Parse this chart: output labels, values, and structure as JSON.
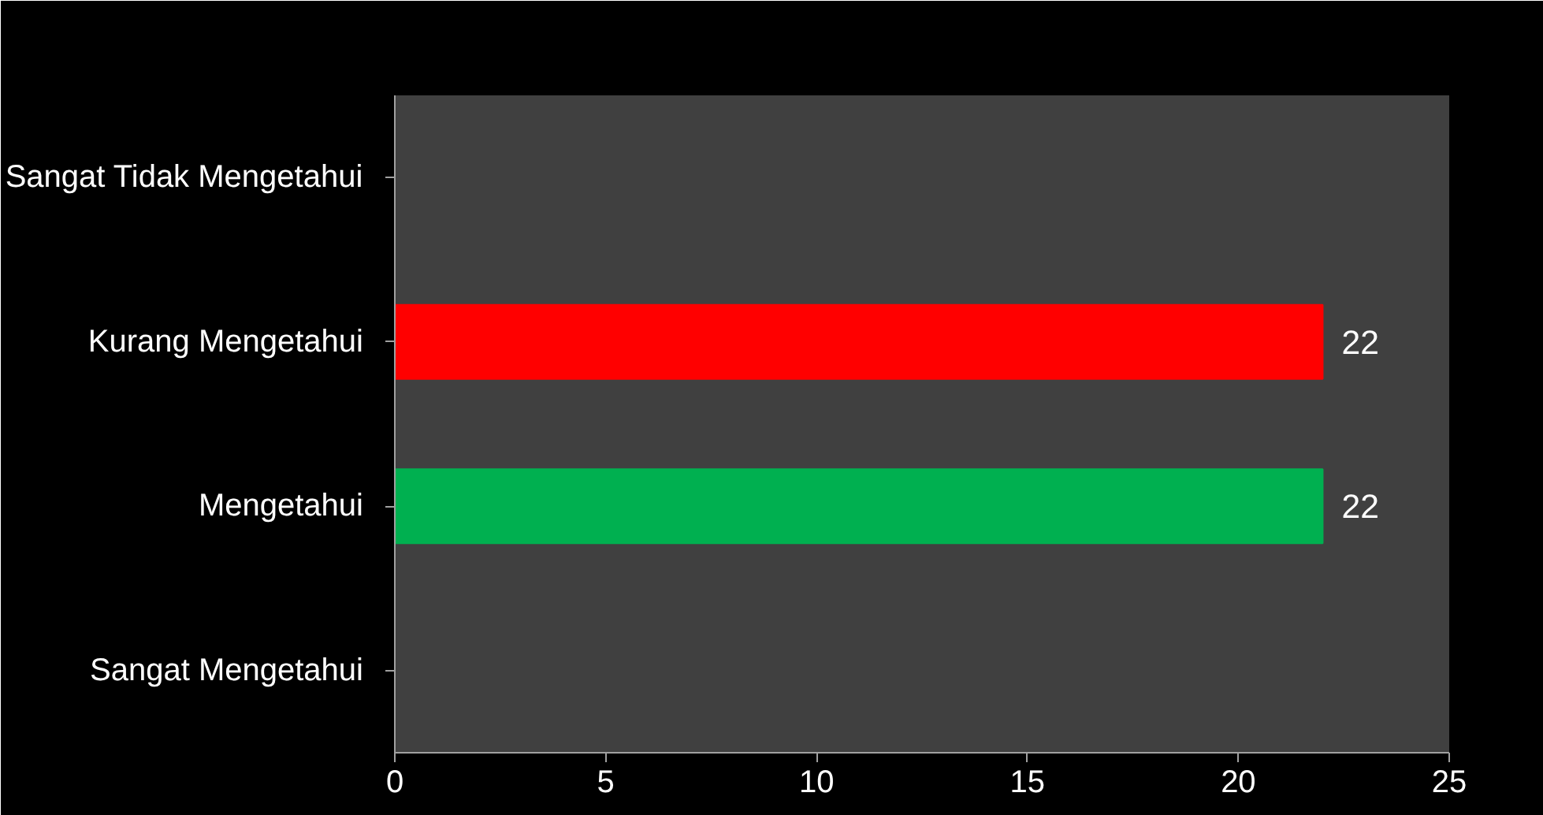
{
  "chart_data": {
    "type": "bar",
    "orientation": "horizontal",
    "categories": [
      "Sangat Tidak Mengetahui",
      "Kurang Mengetahui",
      "Mengetahui",
      "Sangat Mengetahui"
    ],
    "values": [
      0,
      22,
      22,
      0
    ],
    "colors": [
      "#8b1f1f",
      "#ff0000",
      "#00b050",
      "#8b1f1f"
    ],
    "value_labels": [
      null,
      "22",
      "22",
      null
    ],
    "xlim": [
      0,
      25
    ],
    "xticks": [
      0,
      5,
      10,
      15,
      20,
      25
    ]
  }
}
